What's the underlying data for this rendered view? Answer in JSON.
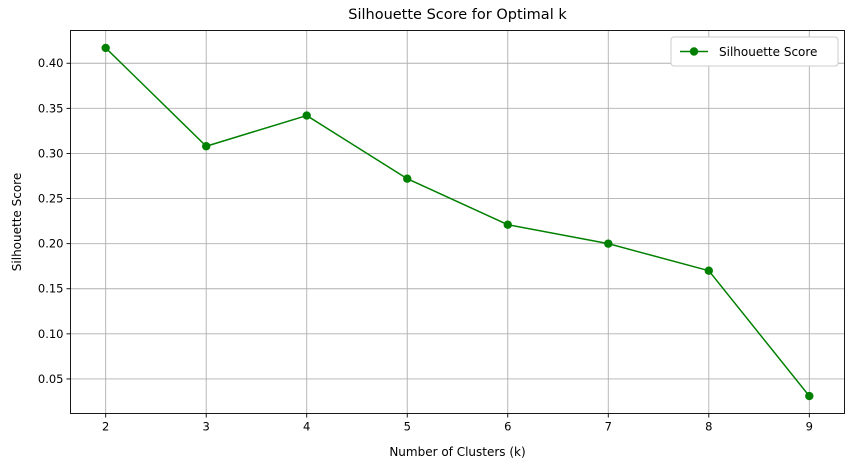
{
  "chart_data": {
    "type": "line",
    "title": "Silhouette Score for Optimal k",
    "xlabel": "Number of Clusters (k)",
    "ylabel": "Silhouette Score",
    "x": [
      2,
      3,
      4,
      5,
      6,
      7,
      8,
      9
    ],
    "series": [
      {
        "name": "Silhouette Score",
        "color": "#008000",
        "marker": "circle",
        "values": [
          0.417,
          0.308,
          0.342,
          0.272,
          0.221,
          0.2,
          0.17,
          0.031
        ]
      }
    ],
    "xlim": [
      1.65,
      9.35
    ],
    "ylim": [
      0.0117,
      0.4363
    ],
    "xticks": [
      2,
      3,
      4,
      5,
      6,
      7,
      8,
      9
    ],
    "xtick_labels": [
      "2",
      "3",
      "4",
      "5",
      "6",
      "7",
      "8",
      "9"
    ],
    "yticks": [
      0.05,
      0.1,
      0.15,
      0.2,
      0.25,
      0.3,
      0.35,
      0.4
    ],
    "ytick_labels": [
      "0.05",
      "0.10",
      "0.15",
      "0.20",
      "0.25",
      "0.30",
      "0.35",
      "0.40"
    ],
    "grid": true,
    "legend": {
      "position": "top-right",
      "entries": [
        "Silhouette Score"
      ]
    }
  }
}
